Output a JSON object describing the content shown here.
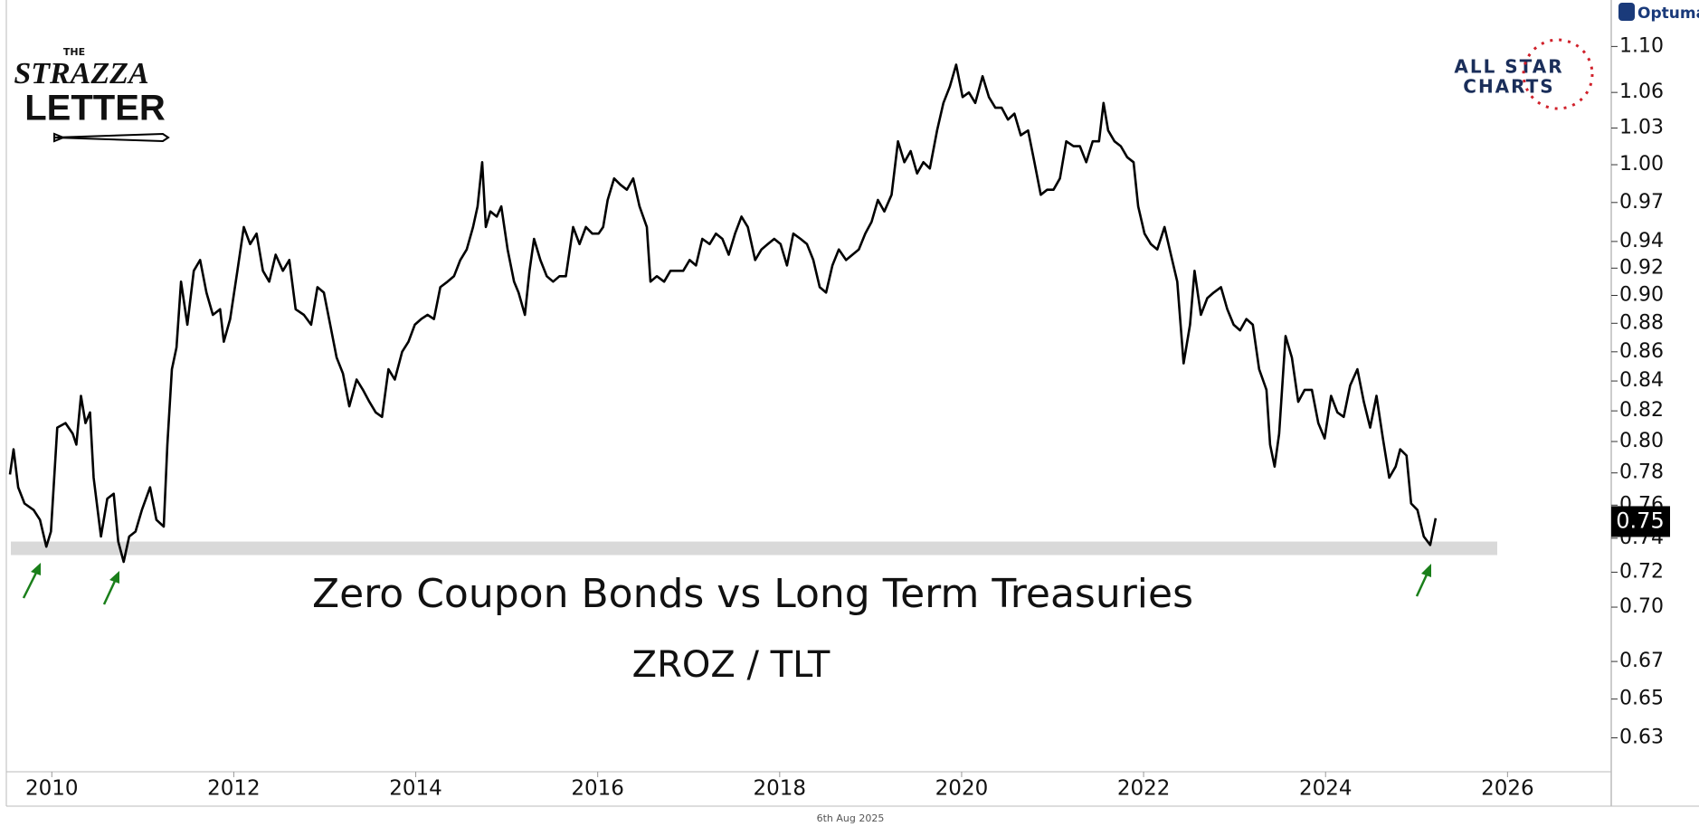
{
  "chart_data": {
    "type": "line",
    "title": "Zero Coupon Bonds  vs Long Term Treasuries",
    "subtitle": "ZROZ / TLT",
    "date": "6th Aug 2025",
    "logos": {
      "strazza_small": "THE",
      "strazza_1": "STRAZZA",
      "strazza_2": "LETTER",
      "allstar_1": "ALL STAR",
      "allstar_2": "CHARTS",
      "optuma": "Optuma"
    },
    "color": "#000000",
    "log_scale": true,
    "xlim": [
      2009.5,
      2027.14
    ],
    "xticks": [
      2010,
      2012,
      2014,
      2016,
      2018,
      2020,
      2022,
      2024,
      2026
    ],
    "ylim": [
      0.613,
      1.142
    ],
    "yticks": [
      0.63,
      0.65,
      0.67,
      {
        "value": 0.7,
        "label": "0.70"
      },
      0.72,
      0.74,
      0.76,
      0.78,
      {
        "value": 0.8,
        "label": "0.80"
      },
      0.82,
      0.84,
      0.86,
      0.88,
      {
        "value": 0.9,
        "label": "0.90"
      },
      0.92,
      0.94,
      0.97,
      {
        "value": 1.0,
        "label": "1.00"
      },
      1.03,
      1.06,
      {
        "value": 1.1,
        "label": "1.10"
      }
    ],
    "support_band": [
      0.73,
      0.738
    ],
    "last_value": 0.75,
    "x": [
      2009.54,
      2009.58,
      2009.63,
      2009.7,
      2009.8,
      2009.87,
      2009.94,
      2009.99,
      2010.06,
      2010.15,
      2010.23,
      2010.27,
      2010.32,
      2010.37,
      2010.42,
      2010.46,
      2010.54,
      2010.61,
      2010.68,
      2010.73,
      2010.79,
      2010.85,
      2010.92,
      2010.99,
      2011.08,
      2011.15,
      2011.23,
      2011.27,
      2011.32,
      2011.37,
      2011.42,
      2011.49,
      2011.56,
      2011.63,
      2011.7,
      2011.77,
      2011.85,
      2011.89,
      2011.96,
      2012.04,
      2012.11,
      2012.18,
      2012.25,
      2012.32,
      2012.39,
      2012.46,
      2012.54,
      2012.61,
      2012.68,
      2012.77,
      2012.85,
      2012.92,
      2012.99,
      2013.06,
      2013.13,
      2013.2,
      2013.27,
      2013.35,
      2013.42,
      2013.49,
      2013.56,
      2013.63,
      2013.7,
      2013.77,
      2013.85,
      2013.92,
      2013.99,
      2014.06,
      2014.13,
      2014.2,
      2014.27,
      2014.35,
      2014.42,
      2014.49,
      2014.56,
      2014.63,
      2014.68,
      2014.73,
      2014.77,
      2014.82,
      2014.89,
      2014.94,
      2015.01,
      2015.08,
      2015.13,
      2015.2,
      2015.25,
      2015.3,
      2015.37,
      2015.44,
      2015.51,
      2015.58,
      2015.65,
      2015.73,
      2015.8,
      2015.87,
      2015.94,
      2016.01,
      2016.06,
      2016.11,
      2016.18,
      2016.25,
      2016.32,
      2016.39,
      2016.46,
      2016.54,
      2016.58,
      2016.65,
      2016.73,
      2016.8,
      2016.87,
      2016.94,
      2017.01,
      2017.08,
      2017.15,
      2017.23,
      2017.3,
      2017.37,
      2017.44,
      2017.51,
      2017.58,
      2017.65,
      2017.73,
      2017.8,
      2017.87,
      2017.94,
      2018.01,
      2018.08,
      2018.15,
      2018.23,
      2018.3,
      2018.37,
      2018.44,
      2018.51,
      2018.58,
      2018.65,
      2018.73,
      2018.8,
      2018.87,
      2018.94,
      2019.01,
      2019.08,
      2019.15,
      2019.23,
      2019.3,
      2019.37,
      2019.44,
      2019.51,
      2019.58,
      2019.65,
      2019.73,
      2019.8,
      2019.87,
      2019.94,
      2020.01,
      2020.08,
      2020.15,
      2020.23,
      2020.3,
      2020.37,
      2020.44,
      2020.51,
      2020.58,
      2020.65,
      2020.73,
      2020.8,
      2020.87,
      2020.94,
      2021.01,
      2021.08,
      2021.15,
      2021.23,
      2021.3,
      2021.37,
      2021.44,
      2021.51,
      2021.56,
      2021.61,
      2021.68,
      2021.75,
      2021.82,
      2021.89,
      2021.94,
      2022.01,
      2022.08,
      2022.15,
      2022.23,
      2022.3,
      2022.37,
      2022.44,
      2022.51,
      2022.56,
      2022.63,
      2022.7,
      2022.77,
      2022.85,
      2022.92,
      2022.99,
      2023.06,
      2023.13,
      2023.2,
      2023.27,
      2023.35,
      2023.39,
      2023.44,
      2023.49,
      2023.56,
      2023.63,
      2023.7,
      2023.77,
      2023.85,
      2023.92,
      2023.99,
      2024.06,
      2024.13,
      2024.2,
      2024.27,
      2024.35,
      2024.42,
      2024.49,
      2024.56,
      2024.63,
      2024.7,
      2024.77,
      2024.82,
      2024.89,
      2024.94,
      2025.01,
      2025.08,
      2025.15,
      2025.21
    ],
    "values": [
      0.779,
      0.795,
      0.771,
      0.761,
      0.757,
      0.751,
      0.735,
      0.744,
      0.809,
      0.812,
      0.805,
      0.798,
      0.83,
      0.812,
      0.819,
      0.777,
      0.741,
      0.764,
      0.767,
      0.738,
      0.726,
      0.741,
      0.744,
      0.757,
      0.771,
      0.751,
      0.747,
      0.798,
      0.848,
      0.863,
      0.91,
      0.879,
      0.918,
      0.926,
      0.902,
      0.886,
      0.89,
      0.867,
      0.883,
      0.918,
      0.951,
      0.938,
      0.946,
      0.918,
      0.91,
      0.93,
      0.918,
      0.926,
      0.89,
      0.886,
      0.879,
      0.906,
      0.902,
      0.879,
      0.856,
      0.845,
      0.823,
      0.841,
      0.834,
      0.826,
      0.819,
      0.816,
      0.848,
      0.841,
      0.86,
      0.867,
      0.879,
      0.883,
      0.886,
      0.883,
      0.906,
      0.91,
      0.914,
      0.926,
      0.934,
      0.951,
      0.967,
      1.002,
      0.951,
      0.963,
      0.959,
      0.967,
      0.934,
      0.91,
      0.902,
      0.886,
      0.918,
      0.942,
      0.926,
      0.914,
      0.91,
      0.914,
      0.914,
      0.951,
      0.938,
      0.951,
      0.946,
      0.946,
      0.951,
      0.972,
      0.989,
      0.984,
      0.98,
      0.989,
      0.967,
      0.951,
      0.91,
      0.914,
      0.91,
      0.918,
      0.918,
      0.918,
      0.926,
      0.922,
      0.942,
      0.938,
      0.946,
      0.942,
      0.93,
      0.946,
      0.959,
      0.951,
      0.926,
      0.934,
      0.938,
      0.942,
      0.938,
      0.922,
      0.946,
      0.942,
      0.938,
      0.926,
      0.906,
      0.902,
      0.922,
      0.934,
      0.926,
      0.93,
      0.934,
      0.946,
      0.955,
      0.972,
      0.963,
      0.976,
      1.019,
      1.002,
      1.011,
      0.993,
      1.002,
      0.997,
      1.028,
      1.051,
      1.065,
      1.084,
      1.056,
      1.06,
      1.051,
      1.074,
      1.056,
      1.047,
      1.047,
      1.037,
      1.042,
      1.024,
      1.028,
      1.002,
      0.976,
      0.98,
      0.98,
      0.989,
      1.019,
      1.015,
      1.015,
      1.002,
      1.019,
      1.019,
      1.051,
      1.028,
      1.019,
      1.015,
      1.006,
      1.002,
      0.967,
      0.946,
      0.938,
      0.934,
      0.951,
      0.93,
      0.91,
      0.852,
      0.879,
      0.918,
      0.886,
      0.898,
      0.902,
      0.906,
      0.89,
      0.879,
      0.875,
      0.883,
      0.879,
      0.848,
      0.834,
      0.798,
      0.784,
      0.805,
      0.871,
      0.856,
      0.826,
      0.834,
      0.834,
      0.812,
      0.802,
      0.83,
      0.819,
      0.816,
      0.837,
      0.848,
      0.826,
      0.809,
      0.83,
      0.802,
      0.777,
      0.784,
      0.795,
      0.791,
      0.761,
      0.757,
      0.741,
      0.736,
      0.752
    ]
  }
}
